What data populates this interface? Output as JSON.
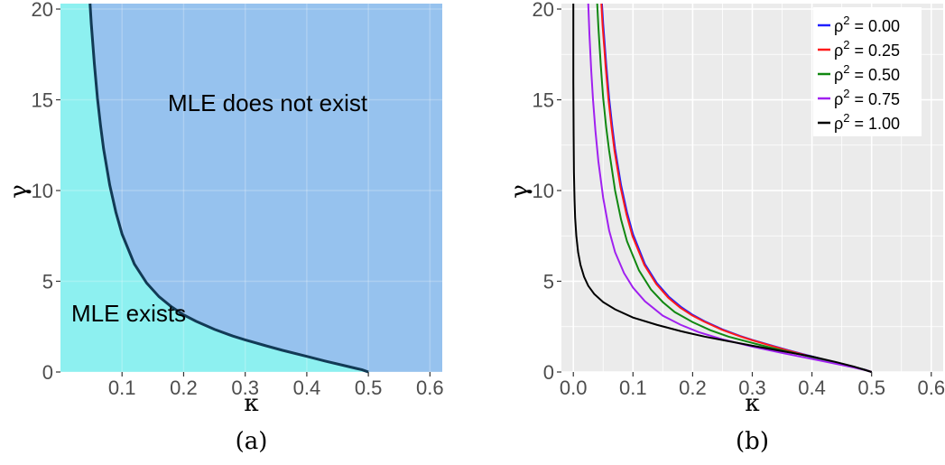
{
  "chart_data": [
    {
      "type": "area",
      "caption": "(a)",
      "xlabel": "κ",
      "ylabel": "γ",
      "xlim": [
        0.0,
        0.62
      ],
      "ylim": [
        0,
        20.3
      ],
      "x_ticks": [
        "0.1",
        "0.2",
        "0.3",
        "0.4",
        "0.5",
        "0.6"
      ],
      "y_ticks": [
        "0",
        "5",
        "10",
        "15",
        "20"
      ],
      "regions": [
        {
          "label": "MLE exists",
          "color": "#8df0f0"
        },
        {
          "label": "MLE does not exist",
          "color": "#96c2ee"
        }
      ],
      "boundary_color": "#123a55",
      "boundary": {
        "x": [
          0.048,
          0.05,
          0.055,
          0.06,
          0.065,
          0.07,
          0.08,
          0.09,
          0.1,
          0.12,
          0.14,
          0.16,
          0.18,
          0.2,
          0.22,
          0.25,
          0.28,
          0.3,
          0.33,
          0.36,
          0.4,
          0.43,
          0.46,
          0.48,
          0.49,
          0.495,
          0.5
        ],
        "y": [
          20.3,
          19.2,
          17.0,
          15.1,
          13.6,
          12.3,
          10.3,
          8.8,
          7.6,
          5.95,
          4.9,
          4.15,
          3.6,
          3.15,
          2.8,
          2.35,
          1.98,
          1.77,
          1.48,
          1.2,
          0.86,
          0.6,
          0.36,
          0.2,
          0.12,
          0.06,
          0.0
        ]
      }
    },
    {
      "type": "line",
      "caption": "(b)",
      "xlabel": "κ",
      "ylabel": "γ",
      "xlim": [
        -0.02,
        0.62
      ],
      "ylim": [
        0,
        20.3
      ],
      "x_ticks": [
        "0.0",
        "0.1",
        "0.2",
        "0.3",
        "0.4",
        "0.5",
        "0.6"
      ],
      "y_ticks": [
        "0",
        "5",
        "10",
        "15",
        "20"
      ],
      "background": "#ebebeb",
      "series": [
        {
          "name": "ρ² = 0.00",
          "sup_base": "ρ",
          "sup": "2",
          "value_text": " = 0.00",
          "color": "#1f1fff",
          "x": [
            0.048,
            0.05,
            0.055,
            0.06,
            0.065,
            0.07,
            0.08,
            0.09,
            0.1,
            0.12,
            0.14,
            0.16,
            0.18,
            0.2,
            0.22,
            0.25,
            0.28,
            0.3,
            0.33,
            0.36,
            0.4,
            0.43,
            0.46,
            0.48,
            0.49,
            0.495,
            0.5
          ],
          "y": [
            20.3,
            19.2,
            17.0,
            15.1,
            13.6,
            12.3,
            10.3,
            8.8,
            7.6,
            5.95,
            4.9,
            4.15,
            3.6,
            3.15,
            2.8,
            2.35,
            1.98,
            1.77,
            1.48,
            1.2,
            0.86,
            0.6,
            0.36,
            0.2,
            0.12,
            0.06,
            0.0
          ]
        },
        {
          "name": "ρ² = 0.25",
          "sup_base": "ρ",
          "sup": "2",
          "value_text": " = 0.25",
          "color": "#ff1a1a",
          "x": [
            0.047,
            0.049,
            0.054,
            0.059,
            0.064,
            0.069,
            0.079,
            0.089,
            0.099,
            0.119,
            0.139,
            0.159,
            0.179,
            0.199,
            0.219,
            0.249,
            0.279,
            0.299,
            0.329,
            0.359,
            0.399,
            0.429,
            0.459,
            0.479,
            0.489,
            0.495,
            0.5
          ],
          "y": [
            20.3,
            19.1,
            16.9,
            15.0,
            13.5,
            12.2,
            10.2,
            8.7,
            7.5,
            5.9,
            4.85,
            4.1,
            3.55,
            3.12,
            2.78,
            2.33,
            1.97,
            1.76,
            1.47,
            1.19,
            0.85,
            0.59,
            0.35,
            0.2,
            0.12,
            0.06,
            0.0
          ]
        },
        {
          "name": "ρ² = 0.50",
          "sup_base": "ρ",
          "sup": "2",
          "value_text": " = 0.50",
          "color": "#118811",
          "x": [
            0.04,
            0.042,
            0.046,
            0.05,
            0.055,
            0.06,
            0.07,
            0.08,
            0.09,
            0.11,
            0.13,
            0.15,
            0.17,
            0.2,
            0.23,
            0.26,
            0.3,
            0.33,
            0.36,
            0.4,
            0.43,
            0.46,
            0.48,
            0.49,
            0.5
          ],
          "y": [
            20.3,
            19.0,
            16.9,
            15.1,
            13.5,
            12.2,
            10.0,
            8.4,
            7.2,
            5.6,
            4.55,
            3.85,
            3.3,
            2.75,
            2.3,
            1.95,
            1.6,
            1.35,
            1.12,
            0.82,
            0.58,
            0.35,
            0.2,
            0.11,
            0.0
          ]
        },
        {
          "name": "ρ² = 0.75",
          "sup_base": "ρ",
          "sup": "2",
          "value_text": " = 0.75",
          "color": "#a020f0",
          "x": [
            0.025,
            0.027,
            0.03,
            0.033,
            0.037,
            0.042,
            0.05,
            0.06,
            0.07,
            0.085,
            0.1,
            0.12,
            0.15,
            0.18,
            0.21,
            0.25,
            0.3,
            0.35,
            0.4,
            0.44,
            0.47,
            0.49,
            0.5
          ],
          "y": [
            20.3,
            18.6,
            16.6,
            15.0,
            13.3,
            11.6,
            9.6,
            7.8,
            6.6,
            5.45,
            4.65,
            3.9,
            3.1,
            2.6,
            2.2,
            1.8,
            1.4,
            1.05,
            0.72,
            0.45,
            0.25,
            0.1,
            0.0
          ]
        },
        {
          "name": "ρ² = 1.00",
          "sup_base": "ρ",
          "sup": "2",
          "value_text": " = 1.00",
          "color": "#000000",
          "x": [
            0.0,
            0.0,
            0.0005,
            0.001,
            0.002,
            0.003,
            0.005,
            0.008,
            0.012,
            0.018,
            0.025,
            0.035,
            0.05,
            0.07,
            0.1,
            0.14,
            0.18,
            0.22,
            0.26,
            0.3,
            0.35,
            0.4,
            0.44,
            0.47,
            0.49,
            0.5
          ],
          "y": [
            20.3,
            16.0,
            13.0,
            11.0,
            9.5,
            8.5,
            7.5,
            6.6,
            5.9,
            5.25,
            4.75,
            4.3,
            3.85,
            3.45,
            3.0,
            2.6,
            2.25,
            1.95,
            1.7,
            1.45,
            1.15,
            0.85,
            0.55,
            0.3,
            0.1,
            0.0
          ]
        }
      ]
    }
  ]
}
